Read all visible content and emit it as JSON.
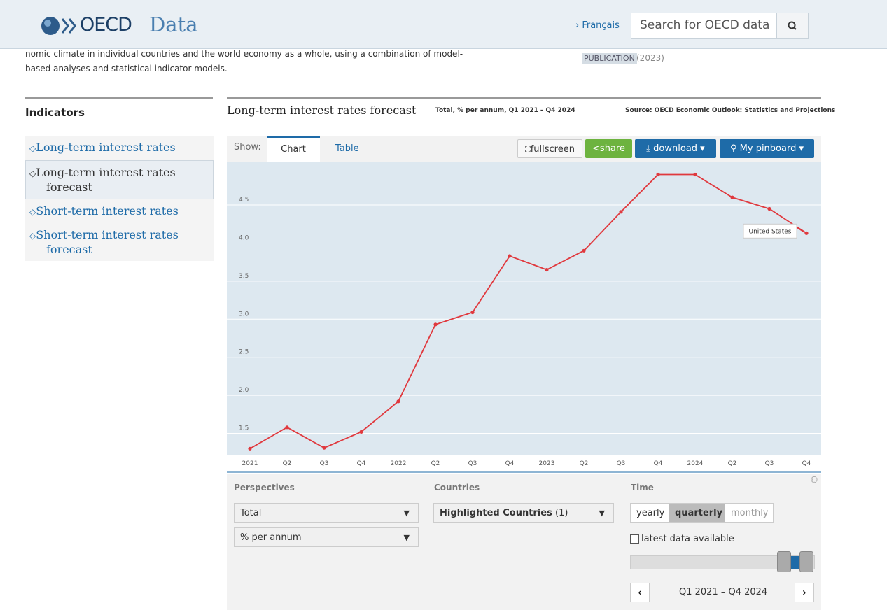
{
  "header": {
    "logo": "OECD",
    "site": "Data",
    "language": "› Français",
    "search_placeholder": "Search for OECD data"
  },
  "intro": {
    "lines": [
      "nomic climate in individual countries and the world economy as a whole, using a combination of model-",
      "based analyses and statistical indicator models."
    ],
    "tag": "PUBLICATION",
    "year": "(2023)"
  },
  "sidebar": {
    "title": "Indicators",
    "items": [
      "Long-term interest rates",
      "Long-term interest rates forecast",
      "Short-term interest rates",
      "Short-term interest rates forecast"
    ]
  },
  "panel": {
    "source": "Source: OECD Economic Outlook: Statistics and Projections",
    "show": "Show:",
    "tabs": [
      "Chart",
      "Table"
    ],
    "buttons": [
      "fullscreen",
      "share",
      "download ▾",
      "My pinboard ▾"
    ],
    "copyright": "©"
  },
  "chart_data": {
    "type": "line",
    "title": "Long-term interest rates forecast",
    "subtitle": "Total, % per annum, Q1 2021 – Q4 2024",
    "categories": [
      "2021",
      "Q2",
      "Q3",
      "Q4",
      "2022",
      "Q2",
      "Q3",
      "Q4",
      "2023",
      "Q2",
      "Q3",
      "Q4",
      "2024",
      "Q2",
      "Q3",
      "Q4"
    ],
    "series": [
      {
        "name": "United States",
        "color": "#e0393e",
        "values": [
          1.3,
          1.58,
          1.31,
          1.52,
          1.92,
          2.93,
          3.09,
          3.83,
          3.65,
          3.9,
          4.41,
          4.9,
          4.9,
          4.6,
          4.45,
          4.13
        ]
      }
    ],
    "ylim": [
      1.22,
      5.07
    ],
    "yticks": [
      1.5,
      {
        "value": 2,
        "label": "2.0"
      },
      2.5,
      {
        "value": 3,
        "label": "3.0"
      },
      3.5,
      {
        "value": 4,
        "label": "4.0"
      },
      4.5
    ],
    "grid": true
  },
  "controls": {
    "perspectives": {
      "label": "Perspectives",
      "options": [
        "Total",
        "% per annum"
      ]
    },
    "countries": {
      "label": "Countries",
      "selection": "Highlighted Countries",
      "count": "(1)"
    },
    "time": {
      "label": "Time",
      "modes": [
        "yearly",
        "quarterly",
        "monthly"
      ],
      "latest": "latest data available",
      "range": "Q1 2021 – Q4 2024"
    }
  }
}
